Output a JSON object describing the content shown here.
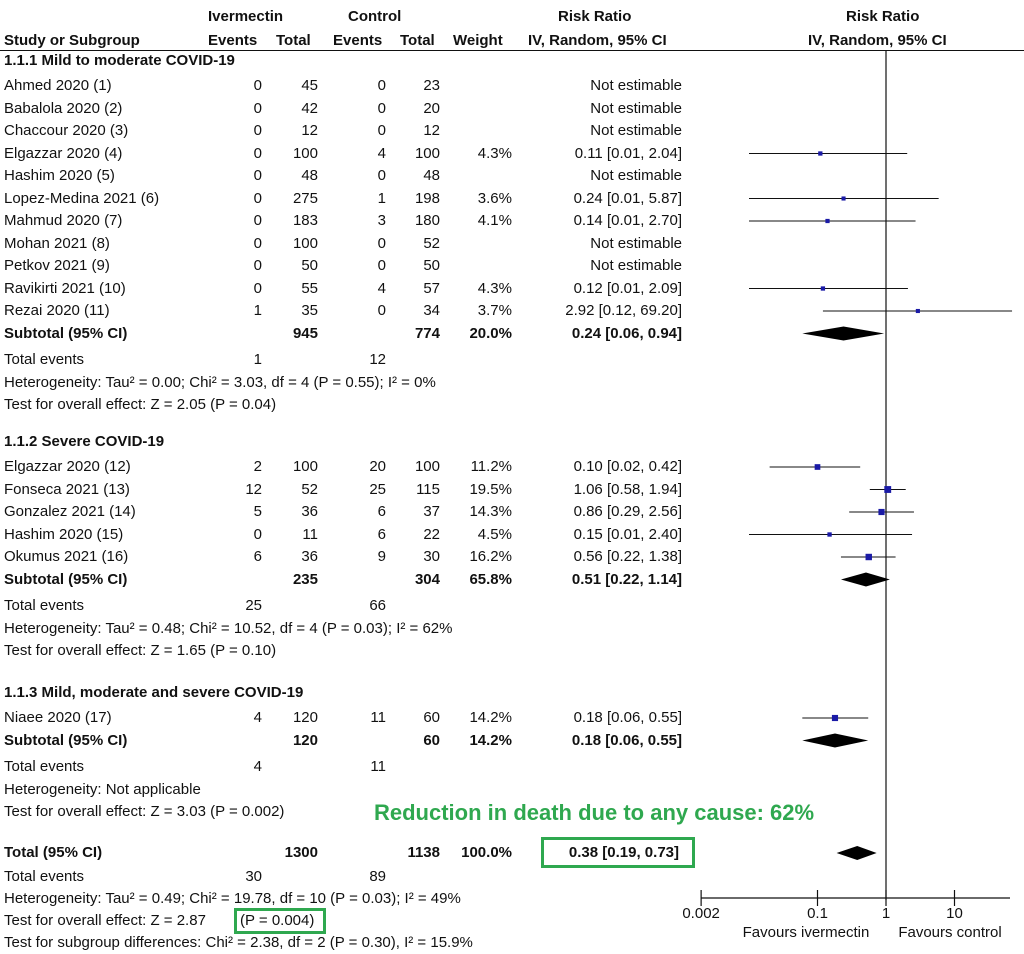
{
  "header": {
    "group1": "Ivermectin",
    "group2": "Control",
    "rr_title": "Risk Ratio",
    "plot_title": "Risk Ratio",
    "col_study": "Study or Subgroup",
    "col_events1": "Events",
    "col_total1": "Total",
    "col_events2": "Events",
    "col_total2": "Total",
    "col_weight": "Weight",
    "col_rr": "IV, Random, 95% CI",
    "col_plot": "IV, Random, 95% CI"
  },
  "groups": [
    {
      "title": "1.1.1 Mild to moderate COVID-19",
      "studies": [
        {
          "name": "Ahmed 2020 (1)",
          "e1": "0",
          "t1": "45",
          "e2": "0",
          "t2": "23",
          "w": "",
          "rr": "Not estimable"
        },
        {
          "name": "Babalola 2020 (2)",
          "e1": "0",
          "t1": "42",
          "e2": "0",
          "t2": "20",
          "w": "",
          "rr": "Not estimable"
        },
        {
          "name": "Chaccour 2020 (3)",
          "e1": "0",
          "t1": "12",
          "e2": "0",
          "t2": "12",
          "w": "",
          "rr": "Not estimable"
        },
        {
          "name": "Elgazzar 2020 (4)",
          "e1": "0",
          "t1": "100",
          "e2": "4",
          "t2": "100",
          "w": "4.3%",
          "rr": "0.11 [0.01, 2.04]"
        },
        {
          "name": "Hashim 2020 (5)",
          "e1": "0",
          "t1": "48",
          "e2": "0",
          "t2": "48",
          "w": "",
          "rr": "Not estimable"
        },
        {
          "name": "Lopez-Medina 2021 (6)",
          "e1": "0",
          "t1": "275",
          "e2": "1",
          "t2": "198",
          "w": "3.6%",
          "rr": "0.24 [0.01, 5.87]"
        },
        {
          "name": "Mahmud 2020 (7)",
          "e1": "0",
          "t1": "183",
          "e2": "3",
          "t2": "180",
          "w": "4.1%",
          "rr": "0.14 [0.01, 2.70]"
        },
        {
          "name": "Mohan 2021 (8)",
          "e1": "0",
          "t1": "100",
          "e2": "0",
          "t2": "52",
          "w": "",
          "rr": "Not estimable"
        },
        {
          "name": "Petkov 2021 (9)",
          "e1": "0",
          "t1": "50",
          "e2": "0",
          "t2": "50",
          "w": "",
          "rr": "Not estimable"
        },
        {
          "name": "Ravikirti 2021 (10)",
          "e1": "0",
          "t1": "55",
          "e2": "4",
          "t2": "57",
          "w": "4.3%",
          "rr": "0.12 [0.01, 2.09]"
        },
        {
          "name": "Rezai 2020 (11)",
          "e1": "1",
          "t1": "35",
          "e2": "0",
          "t2": "34",
          "w": "3.7%",
          "rr": "2.92 [0.12, 69.20]"
        }
      ],
      "subtotal": {
        "label": "Subtotal (95% CI)",
        "t1": "945",
        "t2": "774",
        "w": "20.0%",
        "rr": "0.24 [0.06, 0.94]"
      },
      "events": {
        "label": "Total events",
        "e1": "1",
        "e2": "12"
      },
      "heterogeneity": "Heterogeneity: Tau² = 0.00; Chi² = 3.03, df = 4 (P = 0.55); I² = 0%",
      "overall": "Test for overall effect: Z = 2.05 (P = 0.04)"
    },
    {
      "title": "1.1.2 Severe COVID-19",
      "studies": [
        {
          "name": "Elgazzar 2020 (12)",
          "e1": "2",
          "t1": "100",
          "e2": "20",
          "t2": "100",
          "w": "11.2%",
          "rr": "0.10 [0.02, 0.42]"
        },
        {
          "name": "Fonseca 2021 (13)",
          "e1": "12",
          "t1": "52",
          "e2": "25",
          "t2": "115",
          "w": "19.5%",
          "rr": "1.06 [0.58, 1.94]"
        },
        {
          "name": "Gonzalez 2021 (14)",
          "e1": "5",
          "t1": "36",
          "e2": "6",
          "t2": "37",
          "w": "14.3%",
          "rr": "0.86 [0.29, 2.56]"
        },
        {
          "name": "Hashim 2020 (15)",
          "e1": "0",
          "t1": "11",
          "e2": "6",
          "t2": "22",
          "w": "4.5%",
          "rr": "0.15 [0.01, 2.40]"
        },
        {
          "name": "Okumus 2021 (16)",
          "e1": "6",
          "t1": "36",
          "e2": "9",
          "t2": "30",
          "w": "16.2%",
          "rr": "0.56 [0.22, 1.38]"
        }
      ],
      "subtotal": {
        "label": "Subtotal (95% CI)",
        "t1": "235",
        "t2": "304",
        "w": "65.8%",
        "rr": "0.51 [0.22, 1.14]"
      },
      "events": {
        "label": "Total events",
        "e1": "25",
        "e2": "66"
      },
      "heterogeneity": "Heterogeneity: Tau² = 0.48; Chi² = 10.52, df = 4 (P = 0.03); I² = 62%",
      "overall": "Test for overall effect: Z = 1.65 (P = 0.10)"
    },
    {
      "title": "1.1.3 Mild, moderate and severe COVID-19",
      "studies": [
        {
          "name": "Niaee 2020 (17)",
          "e1": "4",
          "t1": "120",
          "e2": "11",
          "t2": "60",
          "w": "14.2%",
          "rr": "0.18 [0.06, 0.55]"
        }
      ],
      "subtotal": {
        "label": "Subtotal (95% CI)",
        "t1": "120",
        "t2": "60",
        "w": "14.2%",
        "rr": "0.18 [0.06, 0.55]"
      },
      "events": {
        "label": "Total events",
        "e1": "4",
        "e2": "11"
      },
      "heterogeneity": "Heterogeneity: Not applicable",
      "overall": "Test for overall effect: Z = 3.03 (P = 0.002)"
    }
  ],
  "total": {
    "label": "Total (95% CI)",
    "t1": "1300",
    "t2": "1138",
    "w": "100.0%",
    "rr": "0.38 [0.19, 0.73]",
    "events_label": "Total events",
    "e1": "30",
    "e2": "89",
    "heterogeneity": "Heterogeneity: Tau² = 0.49; Chi² = 19.78, df = 10 (P = 0.03); I² = 49%",
    "overall_prefix": "Test for overall effect: Z = 2.87 ",
    "overall_p": "(P = 0.004)",
    "subgroup_diff": "Test for subgroup differences: Chi² = 2.38, df = 2 (P = 0.30), I² = 15.9%"
  },
  "annotation": "Reduction in death due to any cause: 62%",
  "colors": {
    "highlight": "#2fa84f",
    "marker": "#1a1aa6",
    "ink": "#111111"
  },
  "chart_data": {
    "type": "forest",
    "x_scale": "log",
    "xlim": [
      0.002,
      500
    ],
    "ticks": [
      0.002,
      0.1,
      1,
      10
    ],
    "tick_labels": [
      "0.002",
      "0.1",
      "1",
      "10"
    ],
    "label_left": "Favours ivermectin",
    "label_right": "Favours control",
    "reference_line": 1,
    "rows": [
      {
        "study": "Ahmed 2020 (1)",
        "rr": null
      },
      {
        "study": "Babalola 2020 (2)",
        "rr": null
      },
      {
        "study": "Chaccour 2020 (3)",
        "rr": null
      },
      {
        "study": "Elgazzar 2020 (4)",
        "rr": 0.11,
        "lo": 0.01,
        "hi": 2.04,
        "weight": 4.3
      },
      {
        "study": "Hashim 2020 (5)",
        "rr": null
      },
      {
        "study": "Lopez-Medina 2021 (6)",
        "rr": 0.24,
        "lo": 0.01,
        "hi": 5.87,
        "weight": 3.6
      },
      {
        "study": "Mahmud 2020 (7)",
        "rr": 0.14,
        "lo": 0.01,
        "hi": 2.7,
        "weight": 4.1
      },
      {
        "study": "Mohan 2021 (8)",
        "rr": null
      },
      {
        "study": "Petkov 2021 (9)",
        "rr": null
      },
      {
        "study": "Ravikirti 2021 (10)",
        "rr": 0.12,
        "lo": 0.01,
        "hi": 2.09,
        "weight": 4.3
      },
      {
        "study": "Rezai 2020 (11)",
        "rr": 2.92,
        "lo": 0.12,
        "hi": 69.2,
        "weight": 3.7
      },
      {
        "study": "Subtotal 1.1.1",
        "rr": 0.24,
        "lo": 0.06,
        "hi": 0.94,
        "weight": 20.0,
        "diamond": true
      },
      {
        "study": "Elgazzar 2020 (12)",
        "rr": 0.1,
        "lo": 0.02,
        "hi": 0.42,
        "weight": 11.2
      },
      {
        "study": "Fonseca 2021 (13)",
        "rr": 1.06,
        "lo": 0.58,
        "hi": 1.94,
        "weight": 19.5
      },
      {
        "study": "Gonzalez 2021 (14)",
        "rr": 0.86,
        "lo": 0.29,
        "hi": 2.56,
        "weight": 14.3
      },
      {
        "study": "Hashim 2020 (15)",
        "rr": 0.15,
        "lo": 0.01,
        "hi": 2.4,
        "weight": 4.5
      },
      {
        "study": "Okumus 2021 (16)",
        "rr": 0.56,
        "lo": 0.22,
        "hi": 1.38,
        "weight": 16.2
      },
      {
        "study": "Subtotal 1.1.2",
        "rr": 0.51,
        "lo": 0.22,
        "hi": 1.14,
        "weight": 65.8,
        "diamond": true
      },
      {
        "study": "Niaee 2020 (17)",
        "rr": 0.18,
        "lo": 0.06,
        "hi": 0.55,
        "weight": 14.2
      },
      {
        "study": "Subtotal 1.1.3",
        "rr": 0.18,
        "lo": 0.06,
        "hi": 0.55,
        "weight": 14.2,
        "diamond": true
      },
      {
        "study": "Total",
        "rr": 0.38,
        "lo": 0.19,
        "hi": 0.73,
        "weight": 100.0,
        "diamond": true
      }
    ]
  }
}
